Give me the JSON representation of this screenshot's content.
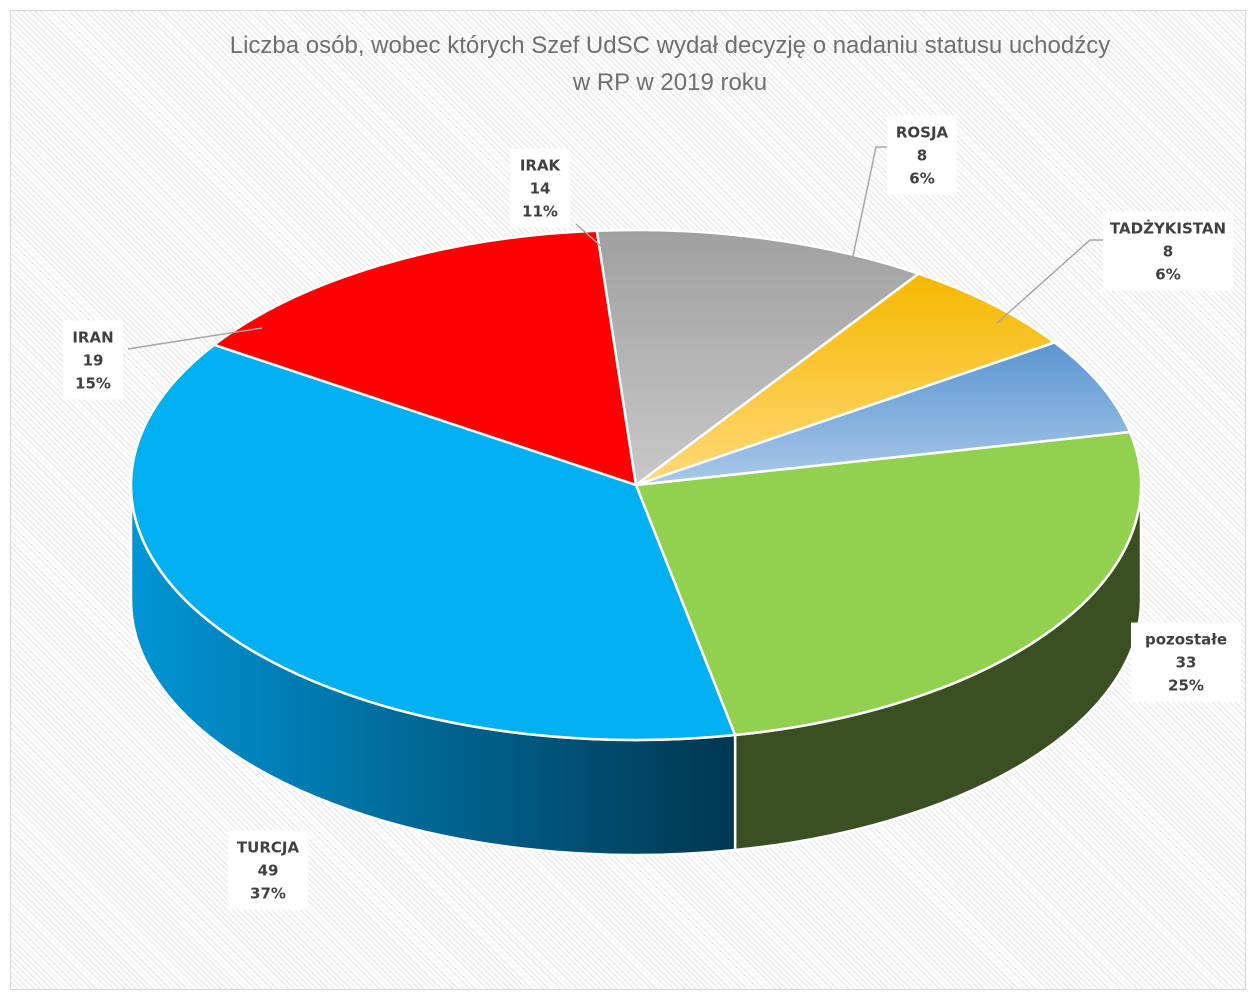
{
  "chart_data": {
    "type": "pie",
    "title_lines": [
      "Liczba osób, wobec których Szef UdSC wydał decyzję o  nadaniu statusu uchodźcy",
      "w RP w 2019 roku"
    ],
    "slices": [
      {
        "name": "pozostałe",
        "value": 33,
        "percent": "25%",
        "color": "#92d050",
        "side_color": "#3a4f22"
      },
      {
        "name": "TURCJA",
        "value": 49,
        "percent": "37%",
        "color": "#00b0f0",
        "side_color": "#0077a8"
      },
      {
        "name": "IRAN",
        "value": 19,
        "percent": "15%",
        "color": "#ff0000",
        "side_color": "#a00000"
      },
      {
        "name": "IRAK",
        "value": 14,
        "percent": "11%",
        "color": "#a6a6a6",
        "side_color": "#6e6e6e"
      },
      {
        "name": "ROSJA",
        "value": 8,
        "percent": "6%",
        "color": "#ffc000",
        "side_color": "#a07800"
      },
      {
        "name": "TADŻYKISTAN",
        "value": 8,
        "percent": "6%",
        "color": "#5b9bd5",
        "side_color": "#34628f"
      }
    ],
    "legend": "none",
    "style": "3d-pie"
  }
}
